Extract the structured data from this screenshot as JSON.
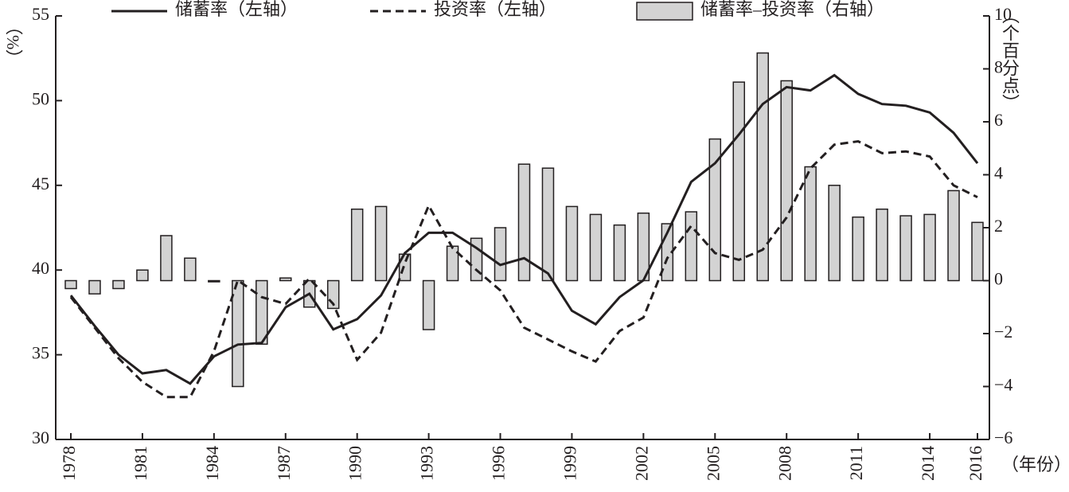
{
  "chart_data": {
    "type": "combo",
    "x": [
      1978,
      1979,
      1980,
      1981,
      1982,
      1983,
      1984,
      1985,
      1986,
      1987,
      1988,
      1989,
      1990,
      1991,
      1992,
      1993,
      1994,
      1995,
      1996,
      1997,
      1998,
      1999,
      2000,
      2001,
      2002,
      2003,
      2004,
      2005,
      2006,
      2007,
      2008,
      2009,
      2010,
      2011,
      2012,
      2013,
      2014,
      2015,
      2016
    ],
    "xlim": [
      1978,
      2016
    ],
    "xticks": [
      1978,
      1981,
      1984,
      1987,
      1990,
      1993,
      1996,
      1999,
      2002,
      2005,
      2008,
      2011,
      2014,
      2016
    ],
    "x_label": "（年份）",
    "y_label": "（%）",
    "y2_label": "（个百分点）",
    "ylim": [
      30,
      55
    ],
    "yticks": [
      30,
      35,
      40,
      45,
      50,
      55
    ],
    "y2lim": [
      -6,
      10
    ],
    "y2ticks": [
      {
        "value": -6,
        "label": "−6"
      },
      {
        "value": -4,
        "label": "−4"
      },
      {
        "value": -2,
        "label": "−2"
      },
      0,
      2,
      4,
      6,
      8,
      10
    ],
    "series": [
      {
        "name": "储蓄率（左轴）",
        "type": "line",
        "line_style": "solid",
        "color": "#231f20",
        "values": [
          38.5,
          36.7,
          35.0,
          33.9,
          34.1,
          33.3,
          34.9,
          35.6,
          35.7,
          37.8,
          38.6,
          36.5,
          37.1,
          38.5,
          41.0,
          42.2,
          42.2,
          41.3,
          40.3,
          40.7,
          39.8,
          37.6,
          36.8,
          38.4,
          39.4,
          42.2,
          45.2,
          46.3,
          48.0,
          49.8,
          50.8,
          50.6,
          51.5,
          50.4,
          49.8,
          49.7,
          49.3,
          48.1,
          46.3
        ]
      },
      {
        "name": "投资率（左轴）",
        "type": "line",
        "line_style": "dashed",
        "color": "#231f20",
        "values": [
          38.4,
          36.6,
          34.8,
          33.4,
          32.5,
          32.5,
          35.2,
          39.4,
          38.4,
          38.0,
          39.5,
          38.0,
          34.7,
          36.3,
          40.4,
          43.8,
          41.3,
          40.0,
          38.8,
          36.6,
          35.9,
          35.2,
          34.6,
          36.4,
          37.2,
          40.7,
          42.6,
          41.0,
          40.6,
          41.2,
          43.1,
          46.0,
          47.4,
          47.6,
          46.9,
          47.0,
          46.7,
          45.0,
          44.3
        ]
      },
      {
        "name": "储蓄率–投资率（右轴）",
        "type": "bar",
        "axis": "y2",
        "color": "#d3d3d3",
        "values": [
          -0.3,
          -0.5,
          -0.3,
          0.4,
          1.7,
          0.85,
          0,
          -4.0,
          -2.4,
          0.1,
          -1.0,
          -1.05,
          2.7,
          2.8,
          1.0,
          -1.85,
          1.3,
          1.6,
          2.0,
          4.4,
          4.25,
          2.8,
          2.5,
          2.1,
          2.55,
          2.15,
          2.6,
          5.35,
          7.5,
          8.6,
          7.55,
          4.3,
          3.6,
          2.4,
          2.7,
          2.45,
          2.5,
          3.4,
          2.2
        ]
      }
    ]
  }
}
